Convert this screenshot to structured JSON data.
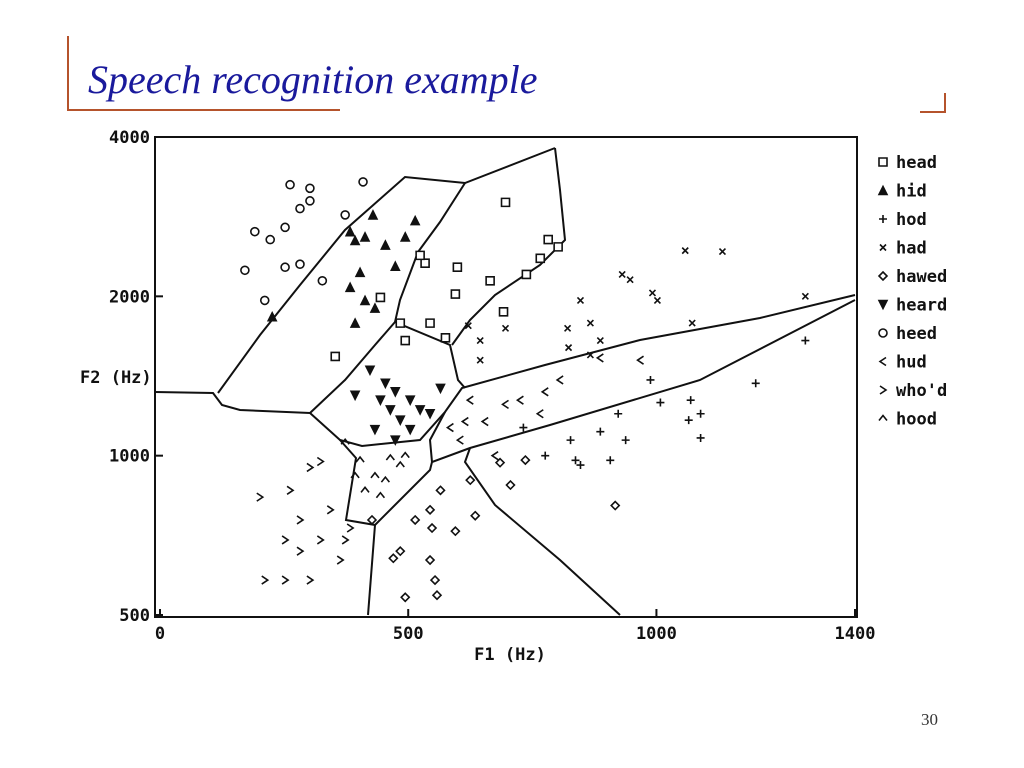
{
  "page": {
    "title": "Speech recognition example",
    "page_number": "30"
  },
  "chart_data": {
    "type": "scatter",
    "x_label": "F1 (Hz)",
    "y_label": "F2 (Hz)",
    "xlim": [
      0,
      1400
    ],
    "xticks": [
      0,
      500,
      1000,
      1400
    ],
    "ylim": [
      500,
      4000
    ],
    "yticks": [
      500,
      1000,
      2000,
      4000
    ],
    "ylog": true,
    "legend": "right",
    "color": "#111111",
    "series": [
      {
        "name": "head",
        "marker": "square",
        "x": [
          696,
          782,
          802,
          766,
          738,
          665,
          534,
          599,
          524,
          444,
          353,
          484,
          544,
          692,
          595,
          494,
          575
        ],
        "values": [
          3010,
          2560,
          2480,
          2360,
          2200,
          2140,
          2310,
          2270,
          2390,
          1990,
          1540,
          1780,
          1780,
          1870,
          2020,
          1650,
          1670
        ]
      },
      {
        "name": "hid",
        "marker": "triangle",
        "x": [
          429,
          393,
          413,
          454,
          494,
          514,
          403,
          383,
          413,
          393,
          433,
          226,
          383,
          474
        ],
        "values": [
          2850,
          2550,
          2590,
          2500,
          2590,
          2780,
          2220,
          2080,
          1965,
          1780,
          1900,
          1830,
          2650,
          2280
        ]
      },
      {
        "name": "hod",
        "marker": "plus",
        "x": [
          1300,
          1200,
          1089,
          1065,
          1069,
          1008,
          923,
          938,
          887,
          827,
          847,
          837,
          776,
          732,
          907,
          988,
          1089
        ],
        "values": [
          1650,
          1370,
          1080,
          1167,
          1273,
          1260,
          1200,
          1070,
          1110,
          1070,
          960,
          980,
          1000,
          1130,
          980,
          1390,
          1200
        ]
      },
      {
        "name": "had",
        "marker": "cross",
        "x": [
          1058,
          1133,
          931,
          947,
          992,
          1002,
          847,
          867,
          821,
          823,
          867,
          887,
          696,
          645,
          621,
          1072,
          1300,
          645
        ],
        "values": [
          2440,
          2430,
          2200,
          2150,
          2030,
          1965,
          1965,
          1780,
          1740,
          1600,
          1550,
          1650,
          1740,
          1650,
          1760,
          1780,
          2000,
          1515
        ]
      },
      {
        "name": "hawed",
        "marker": "diamond",
        "x": [
          917,
          685,
          736,
          625,
          565,
          544,
          514,
          484,
          470,
          544,
          554,
          558,
          494,
          548,
          595,
          635,
          706,
          427
        ],
        "values": [
          805,
          970,
          981,
          899,
          860,
          790,
          756,
          660,
          640,
          635,
          582,
          545,
          540,
          730,
          720,
          770,
          880,
          756
        ]
      },
      {
        "name": "heard",
        "marker": "down-triangle",
        "x": [
          423,
          454,
          474,
          504,
          524,
          464,
          484,
          444,
          504,
          433,
          544,
          565,
          393,
          474
        ],
        "values": [
          1450,
          1370,
          1320,
          1273,
          1220,
          1220,
          1167,
          1273,
          1120,
          1120,
          1200,
          1340,
          1300,
          1070
        ]
      },
      {
        "name": "heed",
        "marker": "circle",
        "x": [
          262,
          282,
          191,
          222,
          252,
          302,
          171,
          252,
          282,
          211,
          327,
          373,
          409,
          302
        ],
        "values": [
          3250,
          2930,
          2650,
          2560,
          2700,
          3030,
          2240,
          2270,
          2300,
          1965,
          2140,
          2850,
          3290,
          3200
        ]
      },
      {
        "name": "hud",
        "marker": "left-angle",
        "x": [
          887,
          806,
          968,
          776,
          726,
          625,
          605,
          655,
          696,
          766,
          615,
          585,
          675
        ],
        "values": [
          1530,
          1390,
          1515,
          1320,
          1273,
          1273,
          1070,
          1160,
          1250,
          1200,
          1160,
          1130,
          1000
        ]
      },
      {
        "name": "who'd",
        "marker": "right-angle",
        "x": [
          201,
          211,
          252,
          262,
          282,
          252,
          282,
          302,
          343,
          323,
          363,
          383,
          373,
          302,
          323
        ],
        "values": [
          835,
          582,
          693,
          860,
          660,
          582,
          756,
          582,
          790,
          693,
          635,
          730,
          693,
          950,
          975
        ]
      },
      {
        "name": "hood",
        "marker": "caret",
        "x": [
          403,
          433,
          454,
          484,
          444,
          413,
          464,
          393,
          373,
          494
        ],
        "values": [
          981,
          916,
          899,
          960,
          840,
          860,
          990,
          916,
          1060,
          1000
        ]
      }
    ]
  }
}
